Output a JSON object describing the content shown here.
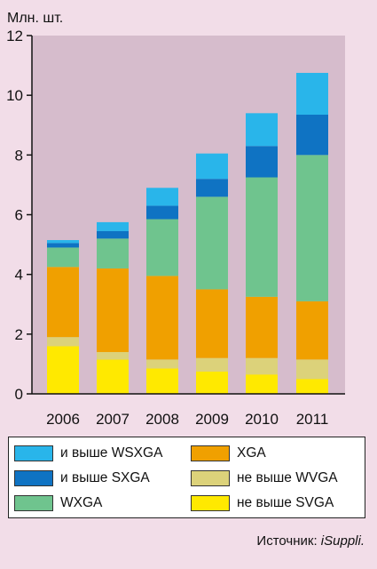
{
  "chart_data": {
    "type": "bar",
    "stacked": true,
    "title": "",
    "unit_label": "Млн. шт.",
    "xlabel": "",
    "ylabel": "",
    "categories": [
      "2006",
      "2007",
      "2008",
      "2009",
      "2010",
      "2011"
    ],
    "ylim": [
      0,
      12
    ],
    "yticks": [
      "0",
      "2",
      "4",
      "6",
      "8",
      "10",
      "12"
    ],
    "grid": false,
    "legend_position": "bottom",
    "series": [
      {
        "name": "не выше SVGA",
        "color": "#ffe900",
        "values": [
          1.6,
          1.15,
          0.85,
          0.75,
          0.65,
          0.5
        ]
      },
      {
        "name": "не выше WVGA",
        "color": "#dcd27a",
        "values": [
          0.3,
          0.25,
          0.3,
          0.45,
          0.55,
          0.65
        ]
      },
      {
        "name": "XGA",
        "color": "#f0a000",
        "values": [
          2.35,
          2.8,
          2.8,
          2.3,
          2.05,
          1.95
        ]
      },
      {
        "name": "WXGA",
        "color": "#6fc48e",
        "values": [
          0.65,
          1.0,
          1.9,
          3.1,
          4.0,
          4.9
        ]
      },
      {
        "name": "и выше SXGA",
        "color": "#0f73c3",
        "values": [
          0.15,
          0.25,
          0.45,
          0.6,
          1.05,
          1.35
        ]
      },
      {
        "name": "и выше WSXGA",
        "color": "#29b5ea",
        "values": [
          0.1,
          0.3,
          0.6,
          0.85,
          1.1,
          1.4
        ]
      }
    ]
  },
  "legend": {
    "items": [
      {
        "label": "и выше WSXGA",
        "color": "#29b5ea"
      },
      {
        "label": "XGA",
        "color": "#f0a000"
      },
      {
        "label": "и выше SXGA",
        "color": "#0f73c3"
      },
      {
        "label": "не выше WVGA",
        "color": "#dcd27a"
      },
      {
        "label": "WXGA",
        "color": "#6fc48e"
      },
      {
        "label": "не выше SVGA",
        "color": "#ffe900"
      }
    ]
  },
  "source": {
    "prefix": "Источник: ",
    "name": "iSuppli."
  }
}
